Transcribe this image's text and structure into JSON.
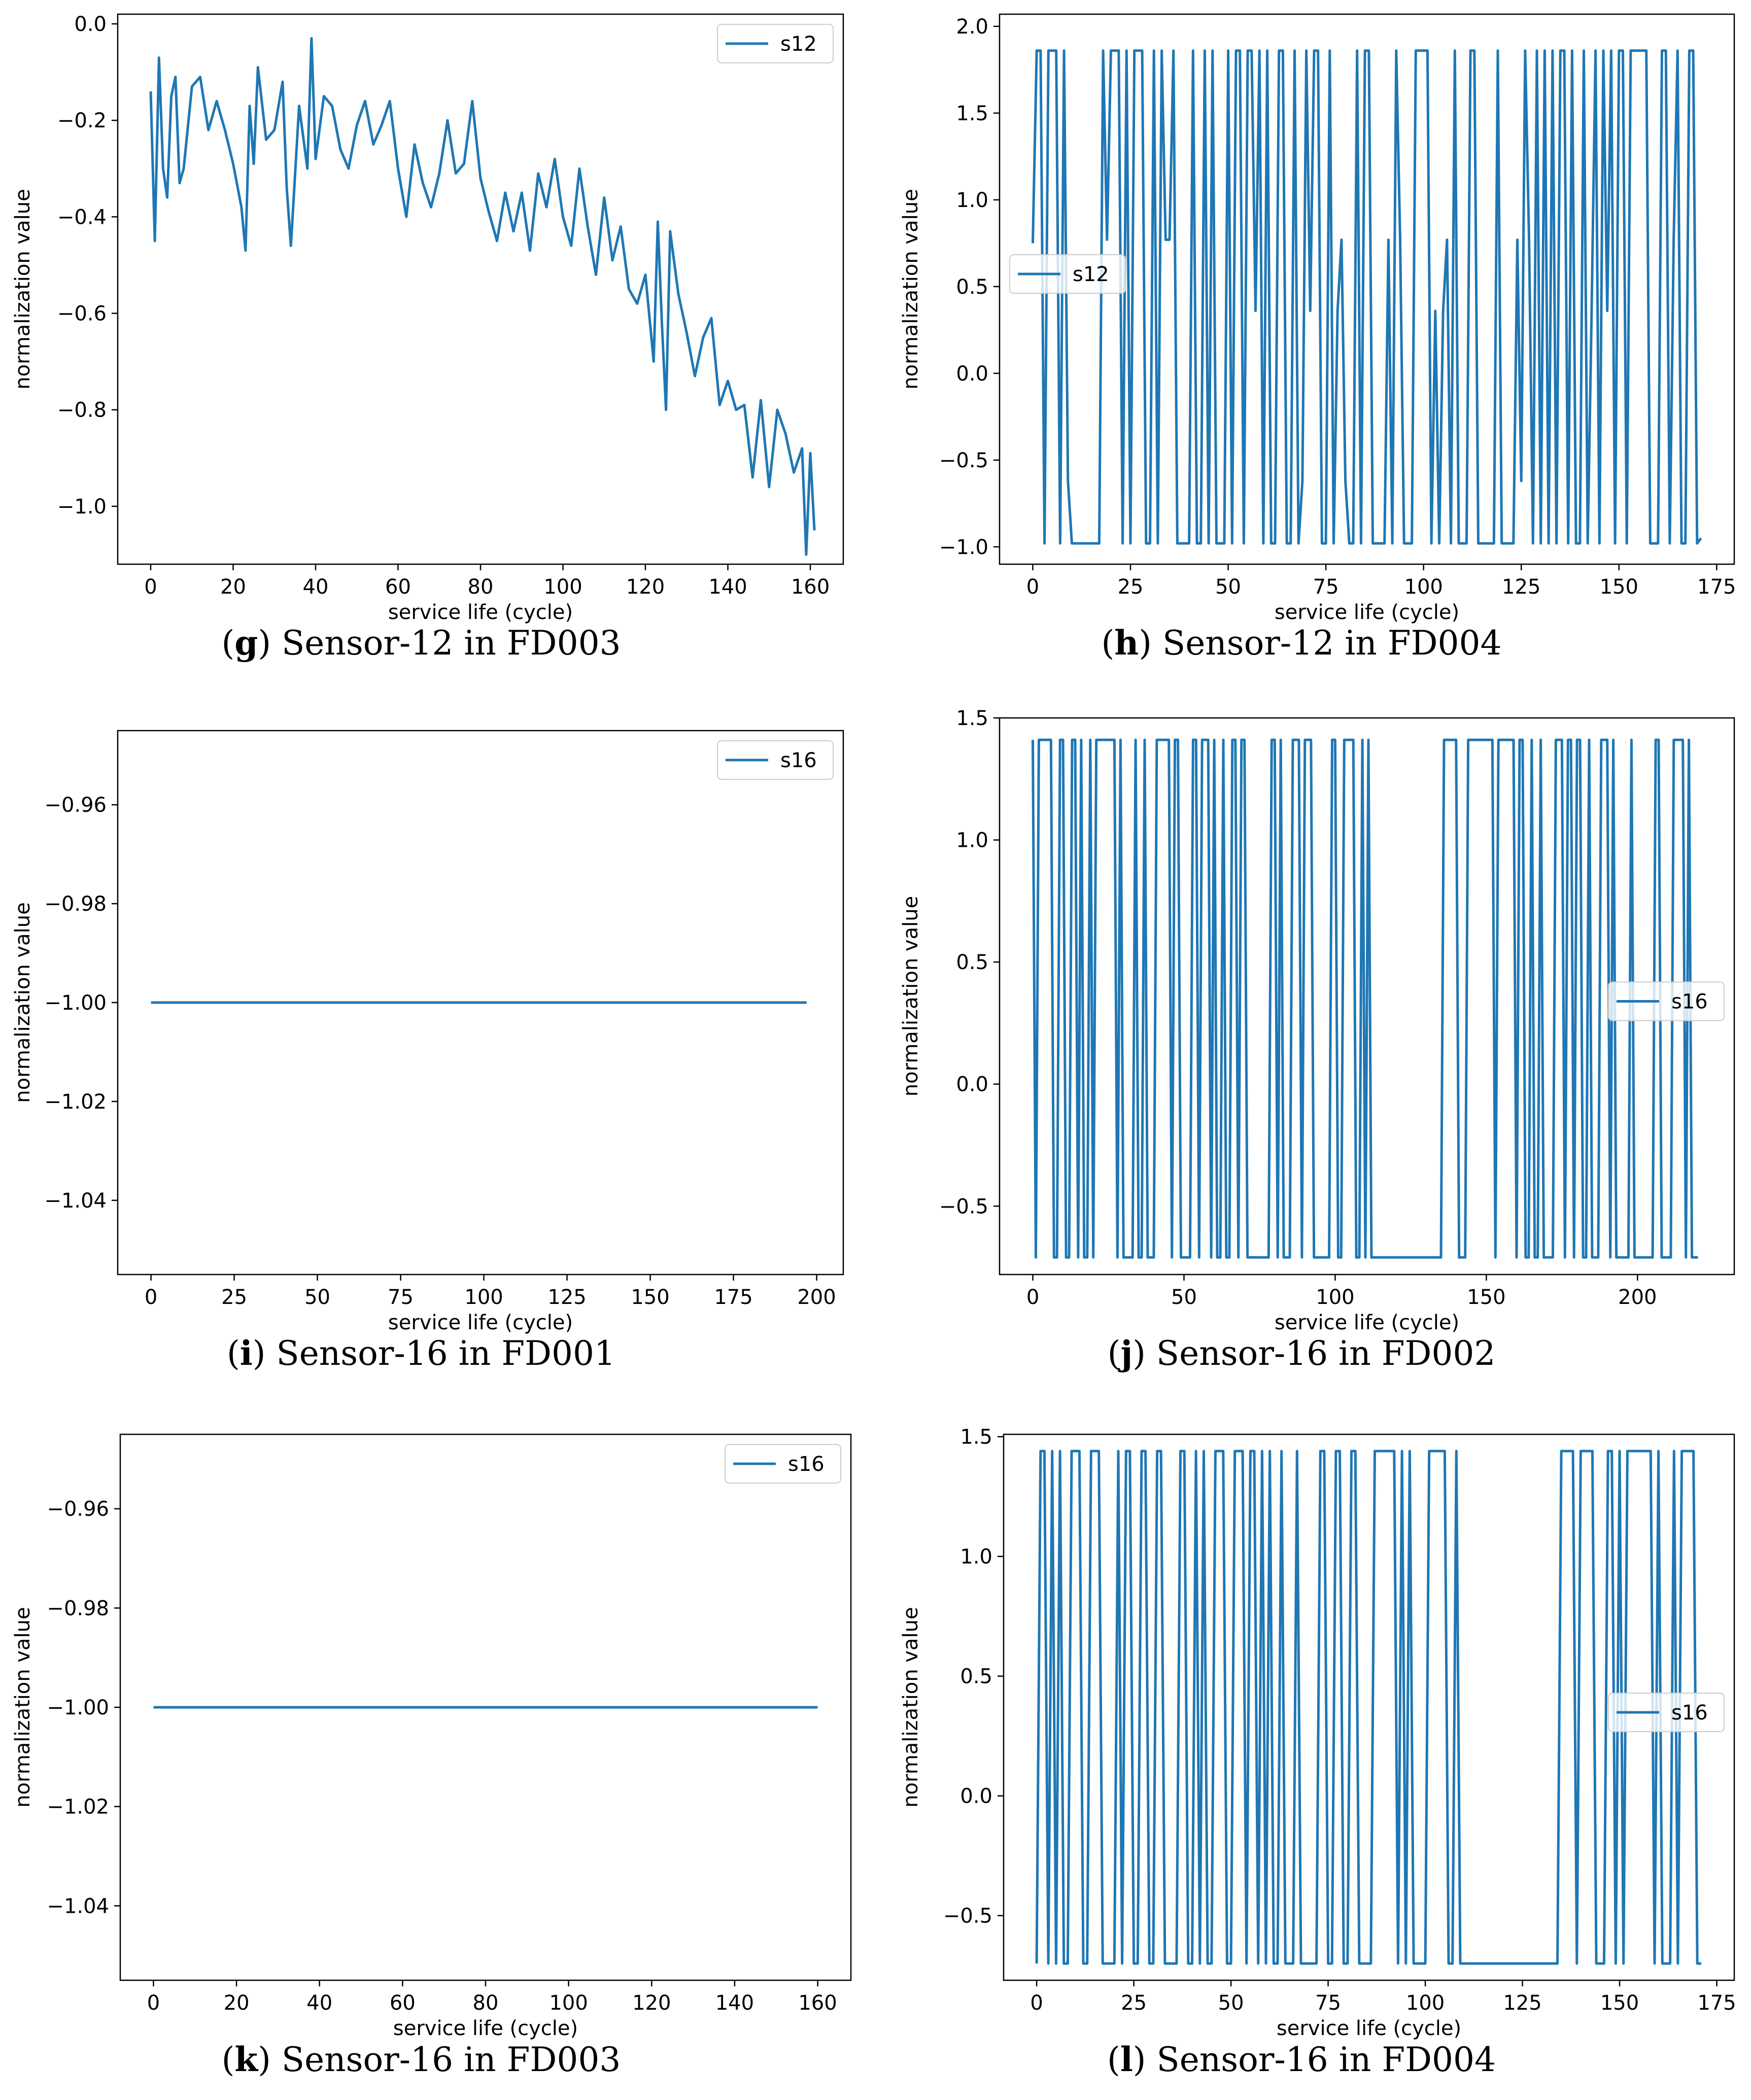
{
  "colors": {
    "series": "#1f77b4",
    "axis": "#000000",
    "legend_border": "#cccccc"
  },
  "chart_data": [
    {
      "panel": "g",
      "caption": "Sensor-12 in FD003",
      "type": "line",
      "series_name": "s12",
      "legend_loc": "upper right",
      "xlabel": "service life (cycle)",
      "ylabel": "normalization value",
      "xlim": [
        -8,
        168
      ],
      "ylim": [
        -1.12,
        0.02
      ],
      "xticks": [
        0,
        20,
        40,
        60,
        80,
        100,
        120,
        140,
        160
      ],
      "xtick_labels": [
        "0",
        "20",
        "40",
        "60",
        "80",
        "100",
        "120",
        "140",
        "160"
      ],
      "yticks": [
        0.0,
        -0.2,
        -0.4,
        -0.6,
        -0.8,
        -1.0
      ],
      "ytick_labels": [
        "0.0",
        "−0.2",
        "−0.4",
        "−0.6",
        "−0.8",
        "−1.0"
      ],
      "mode": "trend",
      "n": 161,
      "start": -0.14,
      "end": -1.05,
      "points": [
        [
          0,
          -0.14
        ],
        [
          1,
          -0.45
        ],
        [
          2,
          -0.07
        ],
        [
          3,
          -0.3
        ],
        [
          4,
          -0.36
        ],
        [
          5,
          -0.15
        ],
        [
          6,
          -0.11
        ],
        [
          7,
          -0.33
        ],
        [
          8,
          -0.3
        ],
        [
          10,
          -0.13
        ],
        [
          12,
          -0.11
        ],
        [
          14,
          -0.22
        ],
        [
          16,
          -0.16
        ],
        [
          18,
          -0.22
        ],
        [
          20,
          -0.29
        ],
        [
          22,
          -0.38
        ],
        [
          23,
          -0.47
        ],
        [
          24,
          -0.17
        ],
        [
          25,
          -0.29
        ],
        [
          26,
          -0.09
        ],
        [
          28,
          -0.24
        ],
        [
          30,
          -0.22
        ],
        [
          32,
          -0.12
        ],
        [
          33,
          -0.34
        ],
        [
          34,
          -0.46
        ],
        [
          36,
          -0.17
        ],
        [
          38,
          -0.3
        ],
        [
          39,
          -0.03
        ],
        [
          40,
          -0.28
        ],
        [
          42,
          -0.15
        ],
        [
          44,
          -0.17
        ],
        [
          46,
          -0.26
        ],
        [
          48,
          -0.3
        ],
        [
          50,
          -0.21
        ],
        [
          52,
          -0.16
        ],
        [
          54,
          -0.25
        ],
        [
          56,
          -0.21
        ],
        [
          58,
          -0.16
        ],
        [
          60,
          -0.3
        ],
        [
          62,
          -0.4
        ],
        [
          64,
          -0.25
        ],
        [
          66,
          -0.33
        ],
        [
          68,
          -0.38
        ],
        [
          70,
          -0.31
        ],
        [
          72,
          -0.2
        ],
        [
          74,
          -0.31
        ],
        [
          76,
          -0.29
        ],
        [
          78,
          -0.16
        ],
        [
          80,
          -0.32
        ],
        [
          82,
          -0.39
        ],
        [
          84,
          -0.45
        ],
        [
          86,
          -0.35
        ],
        [
          88,
          -0.43
        ],
        [
          90,
          -0.35
        ],
        [
          92,
          -0.47
        ],
        [
          94,
          -0.31
        ],
        [
          96,
          -0.38
        ],
        [
          98,
          -0.28
        ],
        [
          100,
          -0.4
        ],
        [
          102,
          -0.46
        ],
        [
          104,
          -0.3
        ],
        [
          106,
          -0.42
        ],
        [
          108,
          -0.52
        ],
        [
          110,
          -0.36
        ],
        [
          112,
          -0.49
        ],
        [
          114,
          -0.42
        ],
        [
          116,
          -0.55
        ],
        [
          118,
          -0.58
        ],
        [
          120,
          -0.52
        ],
        [
          122,
          -0.7
        ],
        [
          123,
          -0.41
        ],
        [
          124,
          -0.62
        ],
        [
          125,
          -0.8
        ],
        [
          126,
          -0.43
        ],
        [
          128,
          -0.56
        ],
        [
          130,
          -0.64
        ],
        [
          132,
          -0.73
        ],
        [
          134,
          -0.65
        ],
        [
          136,
          -0.61
        ],
        [
          138,
          -0.79
        ],
        [
          140,
          -0.74
        ],
        [
          142,
          -0.8
        ],
        [
          144,
          -0.79
        ],
        [
          146,
          -0.94
        ],
        [
          148,
          -0.78
        ],
        [
          150,
          -0.96
        ],
        [
          152,
          -0.8
        ],
        [
          154,
          -0.85
        ],
        [
          156,
          -0.93
        ],
        [
          158,
          -0.88
        ],
        [
          159,
          -1.1
        ],
        [
          160,
          -0.89
        ],
        [
          161,
          -1.05
        ]
      ]
    },
    {
      "panel": "h",
      "caption": "Sensor-12 in FD004",
      "type": "line",
      "series_name": "s12",
      "legend_loc": "center left",
      "xlabel": "service life (cycle)",
      "ylabel": "normalization value",
      "xlim": [
        -8.5,
        179.5
      ],
      "ylim": [
        -1.1,
        2.07
      ],
      "xticks": [
        0,
        25,
        50,
        75,
        100,
        125,
        150,
        175
      ],
      "xtick_labels": [
        "0",
        "25",
        "50",
        "75",
        "100",
        "125",
        "150",
        "175"
      ],
      "yticks": [
        2.0,
        1.5,
        1.0,
        0.5,
        0.0,
        -0.5,
        -1.0
      ],
      "ytick_labels": [
        "2.0",
        "1.5",
        "1.0",
        "0.5",
        "0.0",
        "−0.5",
        "−1.0"
      ],
      "mode": "switch",
      "n": 172,
      "start": 0.75,
      "end": -0.95,
      "levels": [
        -0.98,
        -0.62,
        0.36,
        0.77,
        1.86
      ],
      "seed": 11
    },
    {
      "panel": "i",
      "caption": "Sensor-16 in FD001",
      "type": "line",
      "series_name": "s16",
      "legend_loc": "upper right",
      "xlabel": "service life (cycle)",
      "ylabel": "normalization value",
      "xlim": [
        -10,
        208
      ],
      "ylim": [
        -1.055,
        -0.945
      ],
      "xticks": [
        0,
        25,
        50,
        75,
        100,
        125,
        150,
        175,
        200
      ],
      "xtick_labels": [
        "0",
        "25",
        "50",
        "75",
        "100",
        "125",
        "150",
        "175",
        "200"
      ],
      "yticks": [
        -0.96,
        -0.98,
        -1.0,
        -1.02,
        -1.04
      ],
      "ytick_labels": [
        "−0.96",
        "−0.98",
        "−1.00",
        "−1.02",
        "−1.04"
      ],
      "mode": "constant",
      "n": 198,
      "start": -1.0,
      "end": -1.0
    },
    {
      "panel": "j",
      "caption": "Sensor-16 in FD002",
      "type": "line",
      "series_name": "s16",
      "legend_loc": "center right",
      "xlabel": "service life (cycle)",
      "ylabel": "normalization value",
      "xlim": [
        -11,
        232
      ],
      "ylim": [
        -0.78,
        1.5
      ],
      "xticks": [
        0,
        50,
        100,
        150,
        200
      ],
      "xtick_labels": [
        "0",
        "50",
        "100",
        "150",
        "200"
      ],
      "yticks": [
        1.5,
        1.0,
        0.5,
        0.0,
        -0.5
      ],
      "ytick_labels": [
        "1.5",
        "1.0",
        "0.5",
        "0.0",
        "−0.5"
      ],
      "mode": "binary",
      "n": 221,
      "start": 1.41,
      "end": -0.71,
      "levels": [
        -0.71,
        1.41
      ],
      "flat_range": [
        117,
        133
      ],
      "seed": 23
    },
    {
      "panel": "k",
      "caption": "Sensor-16 in FD003",
      "type": "line",
      "series_name": "s16",
      "legend_loc": "upper right",
      "xlabel": "service life (cycle)",
      "ylabel": "normalization value",
      "xlim": [
        -8,
        168
      ],
      "ylim": [
        -1.055,
        -0.945
      ],
      "xticks": [
        0,
        20,
        40,
        60,
        80,
        100,
        120,
        140,
        160
      ],
      "xtick_labels": [
        "0",
        "20",
        "40",
        "60",
        "80",
        "100",
        "120",
        "140",
        "160"
      ],
      "yticks": [
        -0.96,
        -0.98,
        -1.0,
        -1.02,
        -1.04
      ],
      "ytick_labels": [
        "−0.96",
        "−0.98",
        "−1.00",
        "−1.02",
        "−1.04"
      ],
      "mode": "constant",
      "n": 161,
      "start": -1.0,
      "end": -1.0
    },
    {
      "panel": "l",
      "caption": "Sensor-16 in FD004",
      "type": "line",
      "series_name": "s16",
      "legend_loc": "center right",
      "xlabel": "service life (cycle)",
      "ylabel": "normalization value",
      "xlim": [
        -8.5,
        179.5
      ],
      "ylim": [
        -0.77,
        1.51
      ],
      "xticks": [
        0,
        25,
        50,
        75,
        100,
        125,
        150,
        175
      ],
      "xtick_labels": [
        "0",
        "25",
        "50",
        "75",
        "100",
        "125",
        "150",
        "175"
      ],
      "yticks": [
        1.5,
        1.0,
        0.5,
        0.0,
        -0.5
      ],
      "ytick_labels": [
        "1.5",
        "1.0",
        "0.5",
        "0.0",
        "−0.5"
      ],
      "mode": "binary",
      "n": 172,
      "start": -0.7,
      "end": -0.7,
      "levels": [
        -0.7,
        1.44
      ],
      "flat_range": [
        110,
        130
      ],
      "seed": 37
    }
  ]
}
